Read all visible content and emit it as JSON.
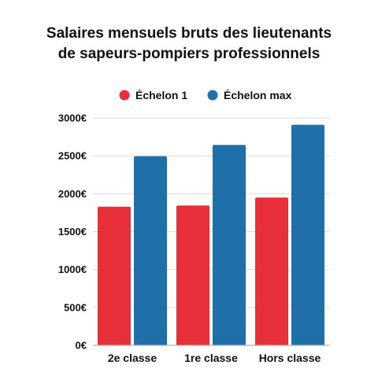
{
  "chart_data": {
    "type": "bar",
    "title_lines": [
      "Salaires mensuels bruts des lieutenants",
      "de sapeurs-pompiers professionnels"
    ],
    "categories": [
      "2e classe",
      "1re classe",
      "Hors classe"
    ],
    "series": [
      {
        "name": "Échelon 1",
        "color": "#e8303a",
        "values": [
          1830,
          1845,
          1950
        ]
      },
      {
        "name": "Échelon max",
        "color": "#1f6fa8",
        "values": [
          2495,
          2645,
          2910
        ]
      }
    ],
    "y_ticks": [
      "0€",
      "500€",
      "1000€",
      "1500€",
      "2000€",
      "2500€",
      "3000€"
    ],
    "y_tick_values": [
      0,
      500,
      1000,
      1500,
      2000,
      2500,
      3000
    ],
    "ylim": [
      0,
      3000
    ],
    "grid": true,
    "legend_position": "top-center",
    "grid_color": "#d9d9d9",
    "axis_color": "#b0b0b0"
  }
}
